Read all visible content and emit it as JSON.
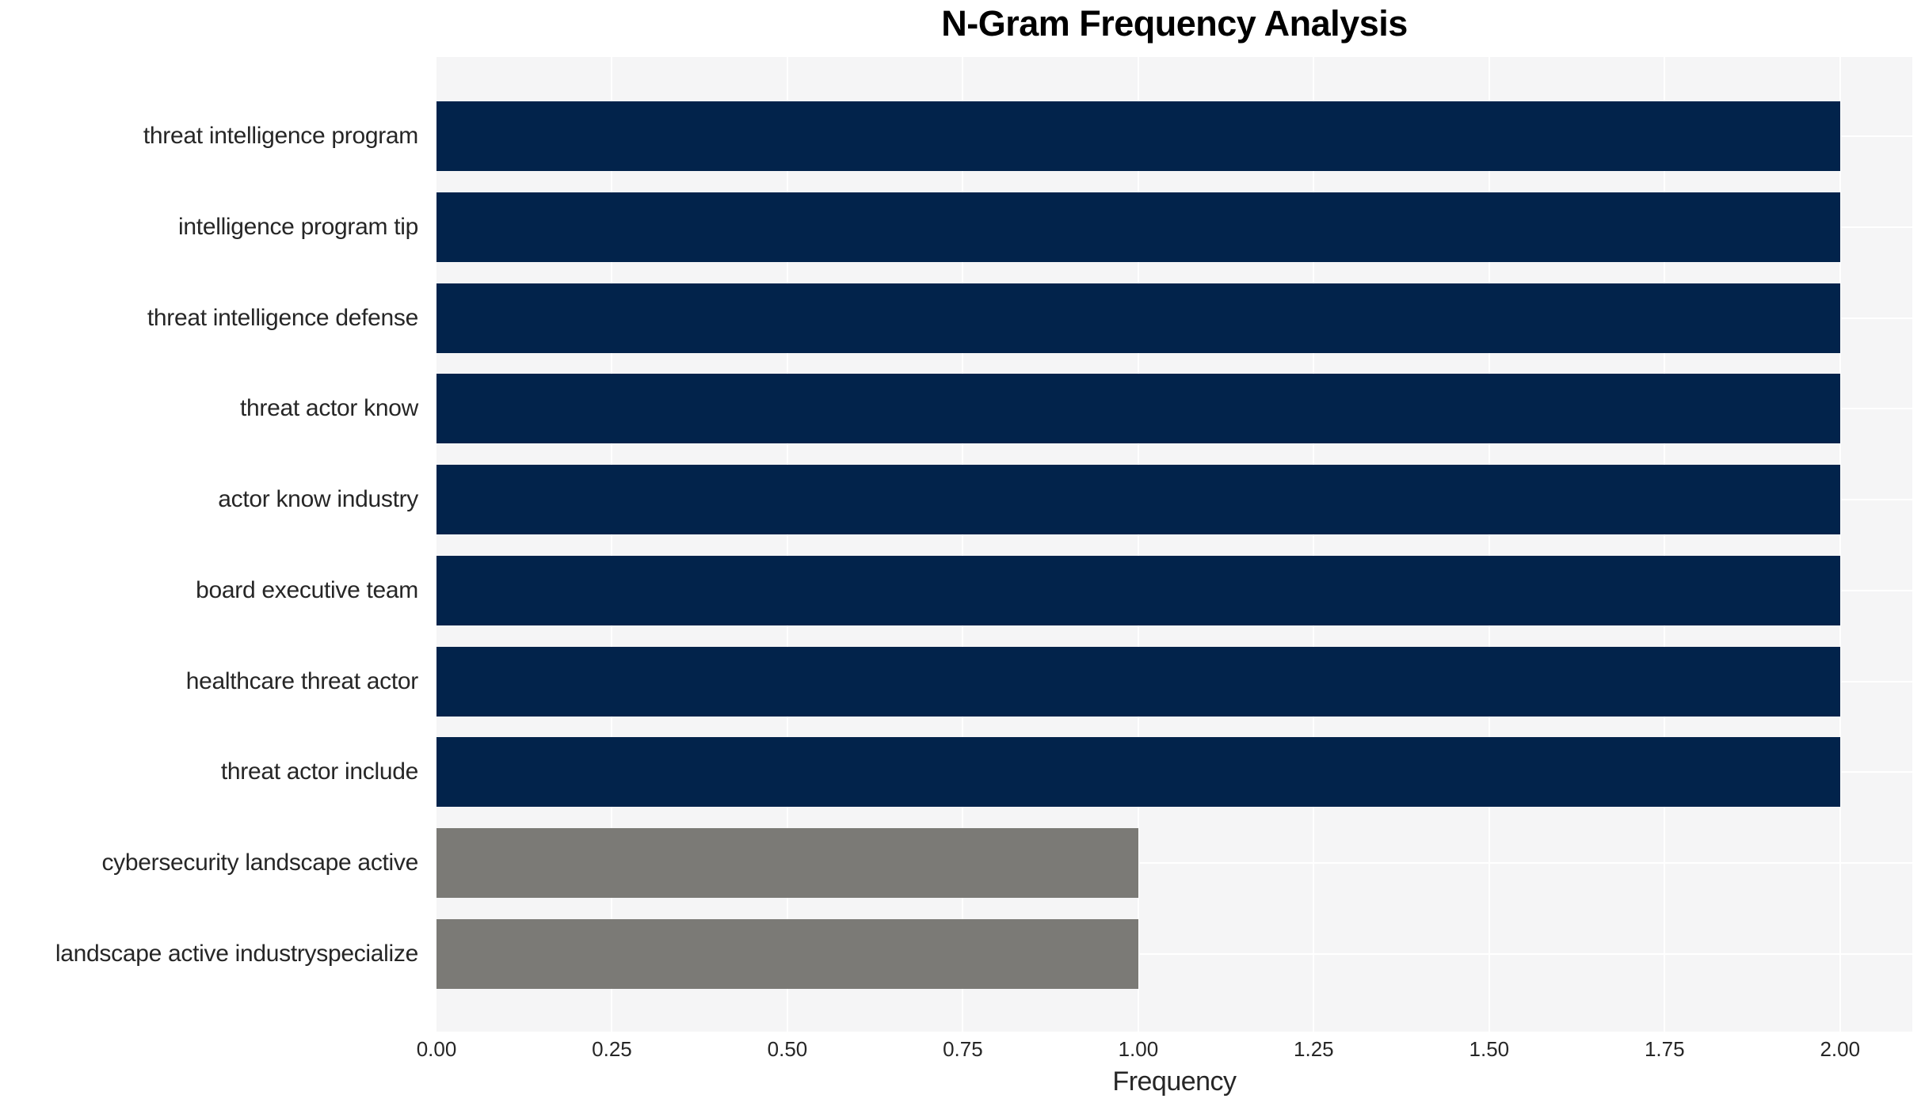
{
  "chart_data": {
    "type": "bar",
    "orientation": "horizontal",
    "title": "N-Gram Frequency Analysis",
    "xlabel": "Frequency",
    "categories": [
      "threat intelligence program",
      "intelligence program tip",
      "threat intelligence defense",
      "threat actor know",
      "actor know industry",
      "board executive team",
      "healthcare threat actor",
      "threat actor include",
      "cybersecurity landscape active",
      "landscape active industryspecialize"
    ],
    "values": [
      2,
      2,
      2,
      2,
      2,
      2,
      2,
      2,
      1,
      1
    ],
    "bar_colors": [
      "#02234B",
      "#02234B",
      "#02234B",
      "#02234B",
      "#02234B",
      "#02234B",
      "#02234B",
      "#02234B",
      "#7B7A76",
      "#7B7A76"
    ],
    "xticks": [
      "0.00",
      "0.25",
      "0.50",
      "0.75",
      "1.00",
      "1.25",
      "1.50",
      "1.75",
      "2.00"
    ],
    "xtick_values": [
      0,
      0.25,
      0.5,
      0.75,
      1.0,
      1.25,
      1.5,
      1.75,
      2.0
    ],
    "xlim": [
      0,
      2.103
    ],
    "grid": true,
    "gridline_color": "#FFFFFF",
    "plot_background": "#F5F5F6",
    "page_background": "#FFFFFF",
    "text_color": "#262626",
    "title_color": "#000000",
    "legend": "none"
  }
}
